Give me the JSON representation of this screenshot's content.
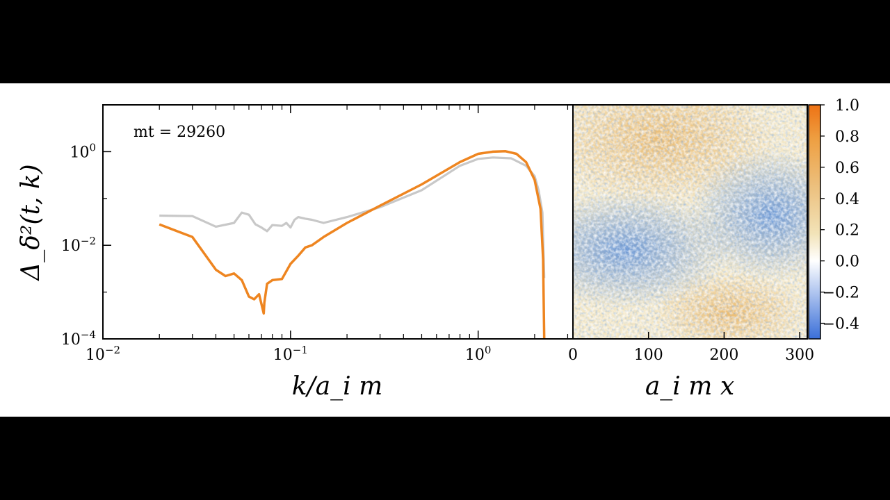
{
  "chart_data": [
    {
      "type": "line",
      "title": "",
      "xlabel": "k/a_i m",
      "ylabel": "Δ_δ²(t, k)",
      "xscale": "log",
      "yscale": "log",
      "xlim": [
        0.01,
        3.2
      ],
      "ylim": [
        0.0001,
        10
      ],
      "x_ticks": [
        {
          "value": 0.01,
          "label": "10",
          "exp": "−2"
        },
        {
          "value": 0.1,
          "label": "10",
          "exp": "−1"
        },
        {
          "value": 1,
          "label": "10",
          "exp": "0"
        }
      ],
      "y_ticks": [
        {
          "value": 0.0001,
          "label": "10",
          "exp": "−4"
        },
        {
          "value": 0.01,
          "label": "10",
          "exp": "−2"
        },
        {
          "value": 1,
          "label": "10",
          "exp": "0"
        }
      ],
      "annotation": "mt = 29260",
      "grid": false,
      "series": [
        {
          "color": "#c8c8c8",
          "x": [
            0.02,
            0.03,
            0.04,
            0.05,
            0.055,
            0.06,
            0.065,
            0.07,
            0.075,
            0.08,
            0.09,
            0.095,
            0.1,
            0.105,
            0.11,
            0.12,
            0.13,
            0.15,
            0.2,
            0.3,
            0.5,
            0.8,
            1.0,
            1.2,
            1.5,
            1.8,
            2.0,
            2.1,
            2.2,
            2.25
          ],
          "y": [
            0.043,
            0.042,
            0.025,
            0.03,
            0.05,
            0.045,
            0.028,
            0.024,
            0.02,
            0.027,
            0.026,
            0.03,
            0.024,
            0.035,
            0.04,
            0.037,
            0.035,
            0.03,
            0.04,
            0.065,
            0.15,
            0.5,
            0.7,
            0.75,
            0.72,
            0.5,
            0.3,
            0.15,
            0.05,
            0.002
          ]
        },
        {
          "color": "#ee8520",
          "x": [
            0.02,
            0.03,
            0.04,
            0.045,
            0.05,
            0.055,
            0.06,
            0.064,
            0.068,
            0.072,
            0.0725,
            0.075,
            0.08,
            0.09,
            0.1,
            0.11,
            0.12,
            0.13,
            0.15,
            0.2,
            0.3,
            0.5,
            0.8,
            1.0,
            1.2,
            1.4,
            1.6,
            1.8,
            2.0,
            2.15,
            2.22,
            2.25
          ],
          "y": [
            0.028,
            0.015,
            0.003,
            0.0022,
            0.0025,
            0.0018,
            0.0008,
            0.0007,
            0.0009,
            0.00035,
            0.0006,
            0.0015,
            0.0018,
            0.0019,
            0.004,
            0.006,
            0.009,
            0.01,
            0.015,
            0.03,
            0.07,
            0.2,
            0.6,
            0.9,
            1.0,
            1.02,
            0.9,
            0.6,
            0.25,
            0.06,
            0.005,
            0.0001
          ]
        }
      ]
    },
    {
      "type": "heatmap",
      "title": "",
      "xlabel": "a_i m x",
      "xlim": [
        0,
        310
      ],
      "x_ticks": [
        "0",
        "100",
        "200",
        "300"
      ],
      "colorbar": {
        "range": [
          -0.5,
          1.0
        ],
        "ticks": [
          "1.0",
          "0.8",
          "0.6",
          "0.4",
          "0.2",
          "0.0",
          "−0.2",
          "−0.4"
        ],
        "tick_values": [
          1.0,
          0.8,
          0.6,
          0.4,
          0.2,
          0.0,
          -0.2,
          -0.4
        ],
        "colors": {
          "low": "#3a6fd8",
          "mid": "#ffffff",
          "tan": "#f2dca6",
          "high": "#ee7214"
        }
      }
    }
  ]
}
